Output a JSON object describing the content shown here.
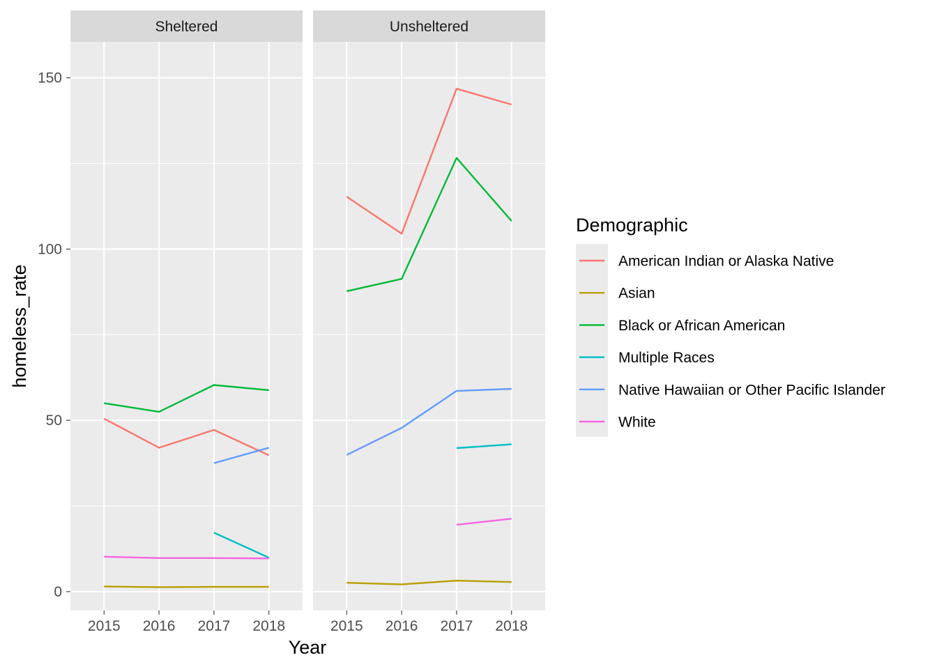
{
  "chart_data": {
    "type": "line",
    "xlabel": "Year",
    "ylabel": "homeless_rate",
    "x": [
      2015,
      2016,
      2017,
      2018
    ],
    "ylim": [
      -5.5,
      160.5
    ],
    "yticks": [
      0,
      50,
      100,
      150
    ],
    "grid": true,
    "legend": {
      "title": "Demographic",
      "placement": "right",
      "entries": [
        {
          "name": "American Indian or Alaska Native",
          "color": "#F8766D"
        },
        {
          "name": "Asian",
          "color": "#B79F00"
        },
        {
          "name": "Black or African American",
          "color": "#00BA38"
        },
        {
          "name": "Multiple Races",
          "color": "#00BFC4"
        },
        {
          "name": "Native Hawaiian or Other Pacific Islander",
          "color": "#619CFF"
        },
        {
          "name": "White",
          "color": "#F564E3"
        }
      ]
    },
    "panels": [
      {
        "title": "Sheltered",
        "series": [
          {
            "name": "American Indian or Alaska Native",
            "x": [
              2015,
              2016,
              2017,
              2018
            ],
            "values": [
              50.5,
              42.0,
              47.2,
              39.8
            ]
          },
          {
            "name": "Asian",
            "x": [
              2015,
              2016,
              2017,
              2018
            ],
            "values": [
              1.5,
              1.3,
              1.4,
              1.4
            ]
          },
          {
            "name": "Black or African American",
            "x": [
              2015,
              2016,
              2017,
              2018
            ],
            "values": [
              55.0,
              52.5,
              60.3,
              58.8
            ]
          },
          {
            "name": "Multiple Races",
            "x": [
              2017,
              2018
            ],
            "values": [
              17.2,
              9.9
            ]
          },
          {
            "name": "Native Hawaiian or Other Pacific Islander",
            "x": [
              2017,
              2018
            ],
            "values": [
              37.5,
              42.0
            ]
          },
          {
            "name": "White",
            "x": [
              2015,
              2016,
              2017,
              2018
            ],
            "values": [
              10.2,
              9.8,
              9.8,
              9.7
            ]
          }
        ]
      },
      {
        "title": "Unsheltered",
        "series": [
          {
            "name": "American Indian or Alaska Native",
            "x": [
              2015,
              2016,
              2017,
              2018
            ],
            "values": [
              115.3,
              104.5,
              146.8,
              142.2
            ]
          },
          {
            "name": "Asian",
            "x": [
              2015,
              2016,
              2017,
              2018
            ],
            "values": [
              2.6,
              2.1,
              3.2,
              2.8
            ]
          },
          {
            "name": "Black or African American",
            "x": [
              2015,
              2016,
              2017,
              2018
            ],
            "values": [
              87.7,
              91.3,
              126.6,
              108.2
            ]
          },
          {
            "name": "Multiple Races",
            "x": [
              2017,
              2018
            ],
            "values": [
              41.9,
              43.0
            ]
          },
          {
            "name": "Native Hawaiian or Other Pacific Islander",
            "x": [
              2015,
              2016,
              2017,
              2018
            ],
            "values": [
              39.9,
              47.8,
              58.6,
              59.2
            ]
          },
          {
            "name": "White",
            "x": [
              2017,
              2018
            ],
            "values": [
              19.5,
              21.3
            ]
          }
        ]
      }
    ]
  }
}
